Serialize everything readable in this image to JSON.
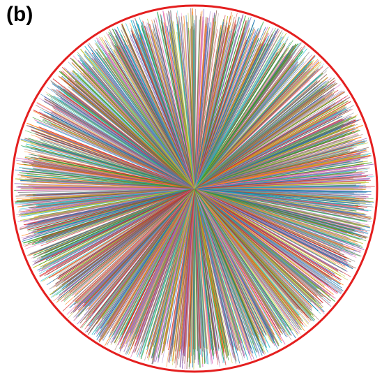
{
  "figure": {
    "panel_label": "(b)",
    "boundary_color": "#e41f1f",
    "background_color": "#ffffff",
    "ray_palette": [
      "#d62728",
      "#1f77b4",
      "#2ca02c",
      "#ff7f0e",
      "#9467bd",
      "#8c564b",
      "#17becf",
      "#bcbd22",
      "#e377c2",
      "#7f7f7f"
    ]
  }
}
